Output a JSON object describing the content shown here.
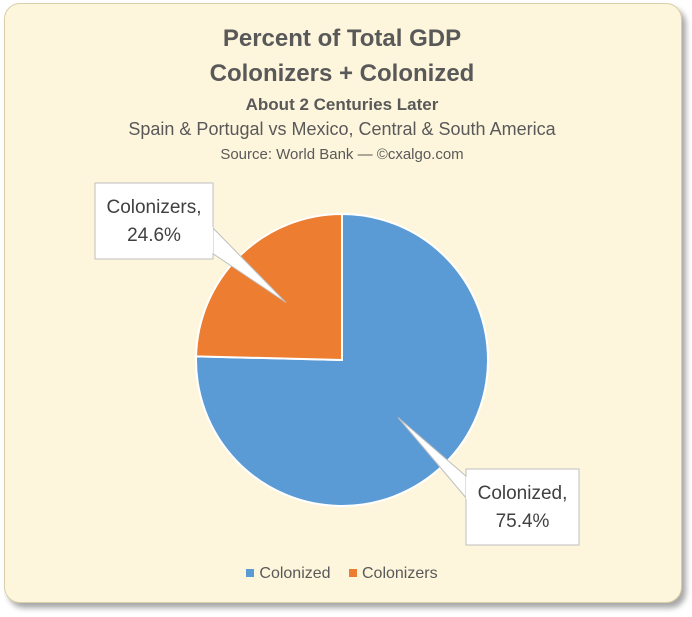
{
  "chart_data": {
    "type": "pie",
    "title": "Percent of Total GDP",
    "title_line2": "Colonizers + Colonized",
    "subtitle": "About 2 Centuries Later",
    "subtitle2": "Spain & Portugal vs Mexico, Central & South America",
    "source": "Source: World Bank — ©cxalgo.com",
    "categories": [
      "Colonized",
      "Colonizers"
    ],
    "values": [
      75.4,
      24.6
    ],
    "colors": [
      "#5b9bd5",
      "#ed7d31"
    ],
    "data_labels": [
      {
        "line1": "Colonized,",
        "line2": "75.4%"
      },
      {
        "line1": "Colonizers,",
        "line2": "24.6%"
      }
    ],
    "legend": {
      "position": "bottom",
      "entries": [
        "Colonized",
        "Colonizers"
      ]
    }
  }
}
